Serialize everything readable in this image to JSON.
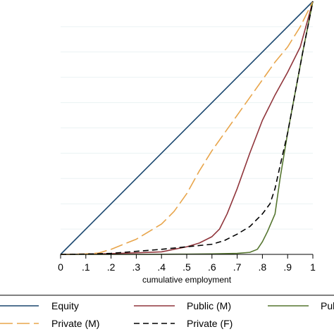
{
  "chart_data": {
    "type": "line",
    "title": "",
    "xlabel": "cumulative employment",
    "ylabel": "",
    "xlim": [
      0,
      1
    ],
    "ylim": [
      0,
      1
    ],
    "grid": "horizontal",
    "x_ticks": [
      {
        "value": 0,
        "label": "0"
      },
      {
        "value": 0.1,
        "label": ".1"
      },
      {
        "value": 0.2,
        "label": ".2"
      },
      {
        "value": 0.3,
        "label": ".3"
      },
      {
        "value": 0.4,
        "label": ".4"
      },
      {
        "value": 0.5,
        "label": ".5"
      },
      {
        "value": 0.6,
        "label": ".6"
      },
      {
        "value": 0.7,
        "label": ".7"
      },
      {
        "value": 0.8,
        "label": ".8"
      },
      {
        "value": 0.9,
        "label": ".9"
      },
      {
        "value": 1,
        "label": "1"
      }
    ],
    "legend_position": "bottom",
    "series": [
      {
        "name": "Equity",
        "color": "#1a476f",
        "dash": "solid",
        "x": [
          0,
          1
        ],
        "y": [
          0,
          1
        ]
      },
      {
        "name": "Public (M)",
        "color": "#90353b",
        "dash": "solid",
        "x": [
          0,
          0.1,
          0.2,
          0.3,
          0.4,
          0.5,
          0.55,
          0.6,
          0.63,
          0.66,
          0.7,
          0.75,
          0.8,
          0.85,
          0.9,
          0.95,
          1
        ],
        "y": [
          0,
          0.001,
          0.003,
          0.006,
          0.01,
          0.03,
          0.045,
          0.07,
          0.1,
          0.16,
          0.26,
          0.4,
          0.53,
          0.63,
          0.72,
          0.82,
          1
        ]
      },
      {
        "name": "Public (F)",
        "color": "#55752f",
        "dash": "solid",
        "x": [
          0,
          0.3,
          0.5,
          0.6,
          0.7,
          0.75,
          0.78,
          0.8,
          0.82,
          0.85,
          0.87,
          0.9,
          0.93,
          0.96,
          1
        ],
        "y": [
          0,
          0,
          0.001,
          0.002,
          0.004,
          0.008,
          0.02,
          0.05,
          0.09,
          0.16,
          0.3,
          0.48,
          0.64,
          0.8,
          1
        ]
      },
      {
        "name": "Private (M)",
        "color": "#e8a54b",
        "dash": "longdash",
        "x": [
          0,
          0.1,
          0.15,
          0.2,
          0.3,
          0.4,
          0.45,
          0.5,
          0.55,
          0.6,
          0.7,
          0.8,
          0.85,
          0.9,
          0.95,
          1
        ],
        "y": [
          0,
          0.002,
          0.005,
          0.02,
          0.06,
          0.12,
          0.17,
          0.24,
          0.33,
          0.41,
          0.55,
          0.69,
          0.76,
          0.82,
          0.9,
          1
        ]
      },
      {
        "name": "Private (F)",
        "color": "#000000",
        "dash": "dash",
        "x": [
          0,
          0.1,
          0.2,
          0.3,
          0.4,
          0.5,
          0.6,
          0.65,
          0.7,
          0.75,
          0.8,
          0.83,
          0.85,
          0.87,
          0.9,
          0.93,
          0.96,
          1
        ],
        "y": [
          0,
          0.001,
          0.004,
          0.012,
          0.02,
          0.03,
          0.04,
          0.055,
          0.08,
          0.11,
          0.16,
          0.2,
          0.26,
          0.35,
          0.48,
          0.64,
          0.8,
          1
        ]
      }
    ]
  }
}
